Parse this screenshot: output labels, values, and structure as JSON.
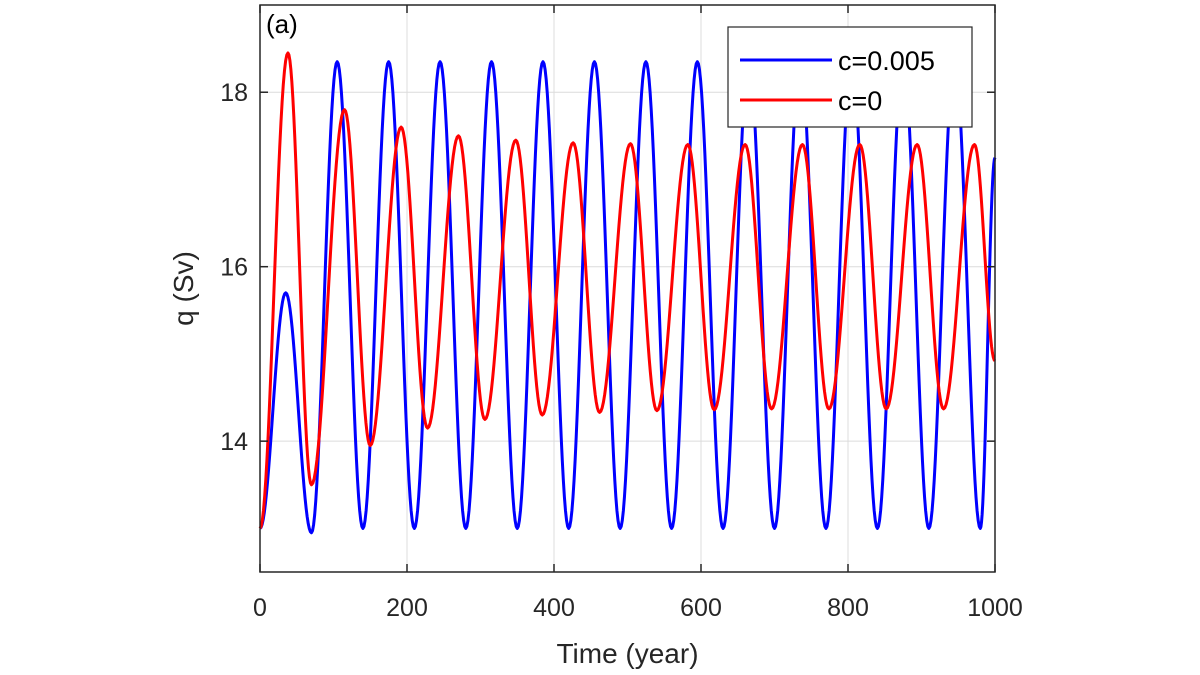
{
  "panel_label": "(a)",
  "chart_data": {
    "type": "line",
    "title": "",
    "xlabel": "Time (year)",
    "ylabel": "q (Sv)",
    "xlim": [
      0,
      1000
    ],
    "ylim": [
      12.5,
      19.0
    ],
    "xticks": [
      0,
      200,
      400,
      600,
      800,
      1000
    ],
    "yticks": [
      14,
      16,
      18
    ],
    "xtick_labels": [
      "0",
      "200",
      "400",
      "600",
      "800",
      "1000"
    ],
    "ytick_labels": [
      "14",
      "16",
      "18"
    ],
    "grid": true,
    "legend_position": "top-right",
    "series": [
      {
        "name": "c=0.005",
        "color": "#0000ff",
        "x": [
          0,
          35,
          70,
          105,
          140,
          175,
          210,
          245,
          280,
          315,
          350,
          385,
          420,
          455,
          490,
          525,
          560,
          595,
          630,
          665,
          700,
          735,
          770,
          805,
          840,
          875,
          910,
          945,
          980,
          1000
        ],
        "y": [
          13.0,
          15.7,
          12.95,
          18.35,
          13.0,
          18.35,
          13.0,
          18.35,
          13.0,
          18.35,
          13.0,
          18.35,
          13.0,
          18.35,
          13.0,
          18.35,
          13.0,
          18.35,
          13.0,
          18.35,
          13.0,
          18.35,
          13.0,
          18.35,
          13.0,
          18.35,
          13.0,
          18.35,
          13.0,
          17.25
        ]
      },
      {
        "name": "c=0",
        "color": "#ff0000",
        "x": [
          0,
          38,
          70,
          115,
          150,
          192,
          228,
          270,
          306,
          348,
          384,
          426,
          462,
          504,
          540,
          582,
          618,
          660,
          696,
          738,
          774,
          816,
          852,
          894,
          930,
          972,
          1000
        ],
        "y": [
          13.0,
          18.45,
          13.5,
          17.8,
          13.95,
          17.6,
          14.15,
          17.5,
          14.25,
          17.45,
          14.3,
          17.42,
          14.33,
          17.41,
          14.35,
          17.4,
          14.36,
          17.4,
          14.37,
          17.4,
          14.37,
          17.4,
          14.37,
          17.4,
          14.37,
          17.4,
          14.92
        ]
      }
    ]
  }
}
